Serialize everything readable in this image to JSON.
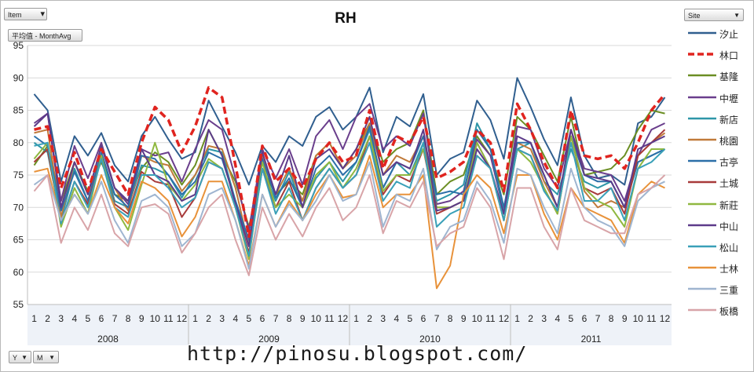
{
  "filters": {
    "item": "Item",
    "monthavg": "平均值 - MonthAvg",
    "site": "Site",
    "y": "Y",
    "m": "M"
  },
  "watermark": "http://pinosu.blogspot.com/",
  "chart_data": {
    "type": "line",
    "title": "RH",
    "xlabel": "",
    "ylabel": "",
    "ylim": [
      55,
      95
    ],
    "yticks": [
      55,
      60,
      65,
      70,
      75,
      80,
      85,
      90,
      95
    ],
    "grid": "horizontal",
    "legend": "right",
    "categories": [
      "1",
      "2",
      "3",
      "4",
      "5",
      "6",
      "7",
      "8",
      "9",
      "10",
      "11",
      "12",
      "1",
      "2",
      "3",
      "4",
      "5",
      "6",
      "7",
      "8",
      "9",
      "10",
      "11",
      "12",
      "1",
      "2",
      "3",
      "4",
      "5",
      "6",
      "7",
      "8",
      "9",
      "10",
      "11",
      "12",
      "1",
      "2",
      "3",
      "4",
      "5",
      "6",
      "7",
      "8",
      "9",
      "10",
      "11",
      "12"
    ],
    "years": [
      "2008",
      "2009",
      "2010",
      "2011"
    ],
    "series": [
      {
        "name": "汐止",
        "color": "#305f8f",
        "dash": false,
        "values": [
          87.5,
          85,
          74,
          81,
          78,
          81.5,
          76.5,
          74,
          81,
          84,
          80.5,
          77.5,
          78.5,
          86.5,
          82.5,
          78.5,
          73.5,
          79.5,
          77,
          81,
          79.5,
          84,
          85.5,
          82,
          84,
          88.5,
          78.5,
          84,
          82.5,
          87.5,
          75,
          77.5,
          78.5,
          86.5,
          83.5,
          77.5,
          90,
          85.5,
          80.5,
          76.5,
          87,
          78,
          74.5,
          75,
          73.5,
          83,
          84,
          87
        ]
      },
      {
        "name": "林口",
        "color": "#e0241f",
        "dash": true,
        "values": [
          82,
          82.5,
          73,
          78.5,
          72.5,
          79,
          75.5,
          72,
          80,
          85.5,
          83.5,
          78.5,
          82.5,
          88.5,
          87,
          76.5,
          65.5,
          79.5,
          74,
          76,
          73,
          77.5,
          80,
          77,
          78,
          85,
          76,
          81,
          80,
          84,
          74.5,
          75.5,
          77,
          82,
          80,
          72.5,
          86,
          82,
          77,
          73,
          85,
          78,
          77.5,
          78,
          76,
          80,
          85,
          87.5
        ]
      },
      {
        "name": "基隆",
        "color": "#6b8e23",
        "dash": false,
        "values": [
          76.5,
          79.5,
          71,
          77,
          72.5,
          77,
          72,
          71,
          76,
          78.5,
          77,
          73.5,
          76.5,
          82,
          78,
          74,
          67,
          76,
          72,
          74,
          72,
          78,
          80,
          76,
          79,
          83,
          77,
          79,
          80,
          85,
          72,
          74,
          75,
          81,
          78,
          72,
          84,
          82,
          78,
          74,
          84,
          75,
          75.5,
          76,
          78,
          82,
          85,
          84.5
        ]
      },
      {
        "name": "中壢",
        "color": "#6a3e8c",
        "dash": false,
        "values": [
          83,
          84.5,
          71,
          79.5,
          74.5,
          80,
          73,
          70.5,
          79,
          78,
          78.5,
          74,
          79,
          83.5,
          82,
          74.5,
          66.5,
          79,
          74.5,
          79,
          73.5,
          81,
          83.5,
          79,
          84,
          86,
          79,
          81,
          79.5,
          84.5,
          70.5,
          71,
          72.5,
          80.5,
          78,
          69.5,
          82.5,
          82,
          76,
          73,
          82,
          76,
          75.5,
          75,
          71,
          78,
          82,
          83
        ]
      },
      {
        "name": "新店",
        "color": "#2e96a8",
        "dash": false,
        "values": [
          80,
          78.5,
          68,
          76,
          71,
          78,
          71,
          70,
          76.5,
          76,
          75,
          71.5,
          75,
          79,
          78.5,
          71,
          64.5,
          76,
          71,
          75.5,
          70,
          74.5,
          77,
          74,
          77,
          82,
          73,
          77,
          75,
          80,
          71,
          72,
          73.5,
          83,
          79,
          69.5,
          79,
          80,
          74,
          72,
          79,
          74,
          73,
          74,
          70,
          77,
          78,
          79
        ]
      },
      {
        "name": "桃園",
        "color": "#c07a3a",
        "dash": false,
        "values": [
          81.5,
          82,
          68.5,
          77,
          72,
          79.5,
          73,
          69.5,
          78,
          77,
          76.5,
          72.5,
          75,
          79.5,
          79,
          73,
          64,
          78,
          72,
          76,
          71,
          78,
          80,
          76,
          78,
          83,
          75,
          78,
          77,
          81,
          70,
          70,
          71,
          78,
          76,
          68,
          80,
          79,
          74,
          70,
          81,
          72.5,
          70,
          71,
          70,
          78,
          80,
          81.5
        ]
      },
      {
        "name": "古亭",
        "color": "#2c6fa8",
        "dash": false,
        "values": [
          81,
          79.5,
          69.5,
          75.5,
          71,
          78.5,
          72,
          70,
          78,
          77.5,
          75,
          72,
          74,
          78.5,
          77.5,
          71,
          65,
          77.5,
          71.5,
          74.5,
          70,
          76,
          78,
          75,
          77,
          82.5,
          73,
          77,
          76,
          81,
          72,
          72.5,
          72,
          82,
          79,
          70,
          80,
          80,
          75,
          70,
          81,
          75,
          74,
          74,
          70,
          77,
          78,
          79
        ]
      },
      {
        "name": "土城",
        "color": "#a83a3a",
        "dash": false,
        "values": [
          77,
          79,
          67.5,
          74,
          70.5,
          77.5,
          70.5,
          69,
          75.5,
          74,
          73.5,
          68.5,
          71.5,
          77,
          76,
          70,
          63,
          76,
          70,
          74,
          68,
          73,
          76,
          73,
          75,
          81,
          72,
          75,
          74,
          79,
          69,
          70,
          71,
          80,
          76,
          68,
          79,
          78,
          73,
          69,
          81,
          73,
          72,
          73,
          69,
          78,
          80,
          82
        ]
      },
      {
        "name": "新莊",
        "color": "#8fb840",
        "dash": false,
        "values": [
          77.5,
          80,
          67,
          73,
          69,
          78,
          70,
          66.5,
          73.5,
          80,
          73.5,
          71,
          73.5,
          77.5,
          76,
          70,
          62,
          77,
          70,
          72,
          70,
          75,
          77,
          73,
          76,
          81,
          72.5,
          75,
          75,
          79,
          70,
          70,
          71,
          80,
          76,
          68,
          79,
          77,
          73,
          69,
          81,
          73,
          71,
          70,
          67,
          76,
          79,
          79
        ]
      },
      {
        "name": "中山",
        "color": "#5c3b8a",
        "dash": false,
        "values": [
          82.5,
          84.5,
          70,
          77,
          72,
          79.5,
          73,
          71,
          79,
          75,
          74,
          71,
          72,
          82,
          78,
          70.5,
          64,
          78.5,
          72,
          78,
          70,
          77.5,
          79,
          76,
          79,
          84,
          75,
          77,
          76,
          82,
          69.5,
          70,
          71,
          79,
          76,
          69,
          81,
          80,
          75,
          70,
          82,
          75,
          74.5,
          74,
          70,
          79,
          80,
          81
        ]
      },
      {
        "name": "松山",
        "color": "#3aa0b8",
        "dash": false,
        "values": [
          79.5,
          80,
          67.5,
          74,
          70,
          77.5,
          70,
          68.5,
          75,
          75,
          73,
          70,
          71.5,
          77,
          76,
          70,
          62.5,
          76,
          69,
          73,
          68,
          73,
          76,
          73,
          75,
          80,
          71,
          74,
          73,
          80,
          67,
          69,
          70,
          78,
          76,
          68,
          79,
          78,
          72.5,
          69.5,
          80,
          71,
          71,
          73,
          68,
          76,
          77,
          79
        ]
      },
      {
        "name": "士林",
        "color": "#e8923a",
        "dash": false,
        "values": [
          75.5,
          76,
          68,
          72,
          69,
          75,
          70,
          67.5,
          74,
          73,
          71,
          65.5,
          68.5,
          74,
          74,
          68,
          61,
          72,
          67,
          71,
          68,
          72,
          75,
          71.5,
          72,
          78,
          70,
          72,
          72,
          75,
          57.5,
          61,
          72,
          75,
          73,
          66,
          75,
          75,
          69,
          65,
          73,
          70,
          69,
          68,
          64.5,
          72,
          74,
          73
        ]
      },
      {
        "name": "三重",
        "color": "#9fb5d0",
        "dash": false,
        "values": [
          73.5,
          75,
          68,
          72,
          69,
          74,
          68,
          64.5,
          71,
          72,
          70,
          64,
          66,
          72,
          73,
          68,
          60.5,
          72,
          67,
          70.5,
          68,
          71,
          75,
          71,
          72,
          77,
          67,
          72,
          71,
          76,
          63.5,
          67,
          68,
          74,
          71,
          64.5,
          76,
          75,
          70,
          66,
          76,
          70,
          68,
          67,
          64,
          71,
          73,
          74
        ]
      },
      {
        "name": "板橋",
        "color": "#d8a4a8",
        "dash": false,
        "values": [
          72.5,
          75,
          64.5,
          70,
          66.5,
          72,
          66,
          64,
          70,
          70.5,
          69,
          63,
          66,
          70,
          72,
          65,
          59.5,
          70,
          65,
          69,
          65.5,
          70,
          73,
          68,
          70,
          75,
          66,
          71,
          70,
          74,
          64,
          66,
          67,
          73,
          70,
          62,
          73,
          73,
          67,
          63.5,
          73,
          68,
          67,
          66,
          66,
          72,
          73,
          75
        ]
      }
    ]
  }
}
